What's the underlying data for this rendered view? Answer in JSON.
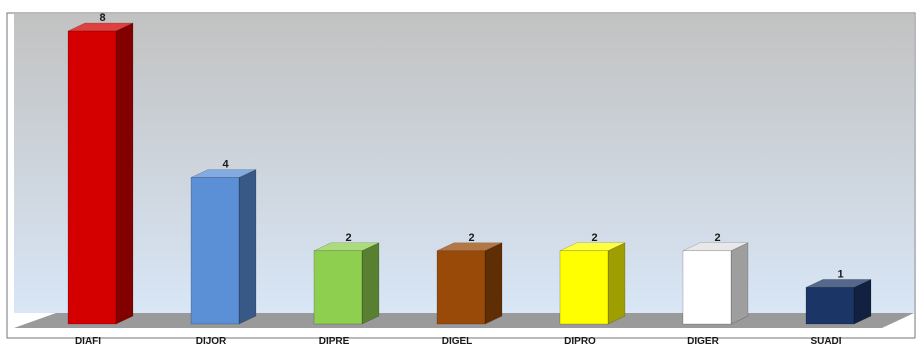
{
  "chart_data": {
    "type": "bar",
    "categories": [
      "DIAFI",
      "DIJOR",
      "DIPRE",
      "DIGEL",
      "DIPRO",
      "DIGER",
      "SUADI"
    ],
    "values": [
      8,
      4,
      2,
      2,
      2,
      2,
      1
    ],
    "data_labels": [
      "8",
      "4",
      "2",
      "2",
      "2",
      "2",
      "1"
    ],
    "colors": [
      "#d40000",
      "#5b8fd6",
      "#8fcf4f",
      "#9a4a08",
      "#ffff00",
      "#ffffff",
      "#1b3566"
    ],
    "ylim": [
      0,
      8
    ],
    "grid": false,
    "legend": "none",
    "style": "3d-columns",
    "background": {
      "top": "#c2c2c2",
      "bottom": "#d8e6f6"
    },
    "floor_color": "#9a9a9a",
    "title": "",
    "xlabel": "",
    "ylabel": ""
  }
}
